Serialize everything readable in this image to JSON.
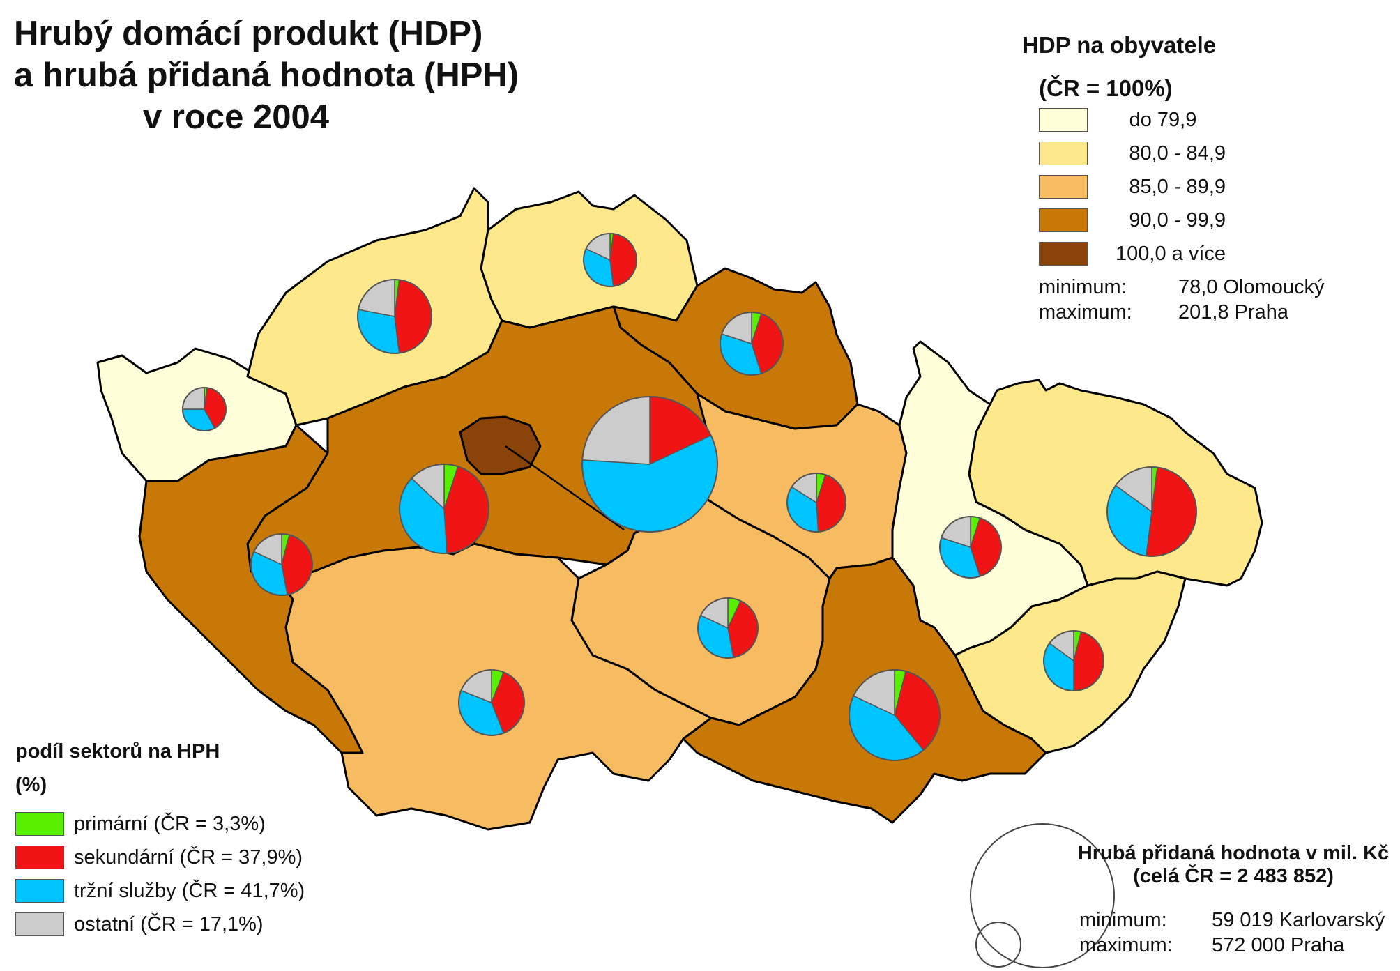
{
  "title": {
    "line1": "Hrubý domácí produkt (HDP)",
    "line2": "a hrubá přidaná hodnota (HPH)",
    "line3": "v roce 2004"
  },
  "hdp_legend": {
    "title": "HDP na obyvatele",
    "subtitle": "(ČR = 100%)",
    "classes": [
      {
        "label": "do 79,9",
        "color": "#ffffd9"
      },
      {
        "label": "80,0 - 84,9",
        "color": "#fde98c"
      },
      {
        "label": "85,0 - 89,9",
        "color": "#f7bb62"
      },
      {
        "label": "90,0 - 99,9",
        "color": "#c87806"
      },
      {
        "label": "100,0 a více",
        "color": "#8a4409"
      }
    ],
    "minimum_label": "minimum:",
    "minimum_value": "78,0 Olomoucký",
    "maximum_label": "maximum:",
    "maximum_value": "201,8 Praha"
  },
  "sector_legend": {
    "title": "podíl sektorů na HPH",
    "subtitle": "(%)",
    "items": [
      {
        "label": "primární (ČR = 3,3%)",
        "color": "#58f000"
      },
      {
        "label": "sekundární (ČR = 37,9%)",
        "color": "#f01414"
      },
      {
        "label": "tržní služby (ČR = 41,7%)",
        "color": "#00c4ff"
      },
      {
        "label": "ostatní (ČR = 17,1%)",
        "color": "#cccccc"
      }
    ]
  },
  "hph_legend": {
    "title_line1": "Hrubá přidaná hodnota v mil. Kč",
    "title_line2": "(celá ČR = 2 483 852)",
    "minimum_label": "minimum:",
    "minimum_value": "59 019 Karlovarský",
    "maximum_label": "maximum:",
    "maximum_value": "572 000 Praha"
  },
  "regions": [
    {
      "id": "karlovarsky",
      "hdp_class": 0
    },
    {
      "id": "ustecky",
      "hdp_class": 1
    },
    {
      "id": "liberecky",
      "hdp_class": 1
    },
    {
      "id": "kralovehradecky",
      "hdp_class": 3
    },
    {
      "id": "stredocesky",
      "hdp_class": 3
    },
    {
      "id": "praha",
      "hdp_class": 4
    },
    {
      "id": "plzensky",
      "hdp_class": 3
    },
    {
      "id": "jihocesky",
      "hdp_class": 2
    },
    {
      "id": "vysocina",
      "hdp_class": 2
    },
    {
      "id": "pardubicky",
      "hdp_class": 2
    },
    {
      "id": "jihomoravsky",
      "hdp_class": 3
    },
    {
      "id": "olomoucky",
      "hdp_class": 0
    },
    {
      "id": "moravskoslezsky",
      "hdp_class": 1
    },
    {
      "id": "zlinsky",
      "hdp_class": 1
    }
  ],
  "pies": [
    {
      "id": "karlovarsky",
      "shares": [
        2,
        40,
        33,
        25
      ]
    },
    {
      "id": "ustecky",
      "shares": [
        2,
        46,
        30,
        22
      ]
    },
    {
      "id": "liberecky",
      "shares": [
        2,
        46,
        34,
        18
      ]
    },
    {
      "id": "kralovehradecky",
      "shares": [
        5,
        40,
        35,
        20
      ]
    },
    {
      "id": "stredocesky",
      "shares": [
        5,
        44,
        38,
        13
      ]
    },
    {
      "id": "praha",
      "shares": [
        0,
        18,
        58,
        24
      ]
    },
    {
      "id": "plzensky",
      "shares": [
        4,
        43,
        35,
        18
      ]
    },
    {
      "id": "jihocesky",
      "shares": [
        6,
        38,
        37,
        19
      ]
    },
    {
      "id": "vysocina",
      "shares": [
        7,
        40,
        35,
        18
      ]
    },
    {
      "id": "pardubicky",
      "shares": [
        5,
        44,
        35,
        16
      ]
    },
    {
      "id": "jihomoravsky",
      "shares": [
        4,
        35,
        43,
        18
      ]
    },
    {
      "id": "olomoucky",
      "shares": [
        5,
        40,
        35,
        20
      ]
    },
    {
      "id": "moravskoslezsky",
      "shares": [
        2,
        50,
        33,
        15
      ]
    },
    {
      "id": "zlinsky",
      "shares": [
        4,
        46,
        35,
        15
      ]
    }
  ]
}
